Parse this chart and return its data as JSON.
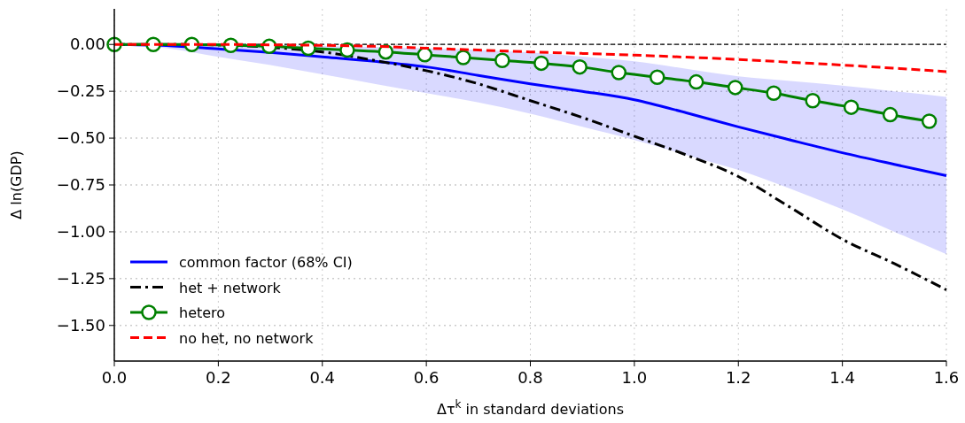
{
  "chart_data": {
    "type": "line",
    "xlabel": "Δτ$^{k}$ in standard deviations",
    "ylabel": "Δ ln(GDP)",
    "xlim": [
      0,
      1.6
    ],
    "ylim": [
      -1.69,
      0.19
    ],
    "xticks": [
      {
        "value": 0,
        "label": "0.0"
      },
      0.2,
      0.4,
      0.6,
      0.8,
      {
        "value": 1,
        "label": "1.0"
      },
      1.2,
      1.4,
      1.6
    ],
    "yticks": [
      {
        "value": 0,
        "label": "0.00"
      },
      {
        "value": -0.25,
        "label": "−0.25"
      },
      {
        "value": -0.5,
        "label": "−0.50"
      },
      {
        "value": -0.75,
        "label": "−0.75"
      },
      {
        "value": -1,
        "label": "−1.00"
      },
      {
        "value": -1.25,
        "label": "−1.25"
      },
      {
        "value": -1.5,
        "label": "−1.50"
      }
    ],
    "grid": true,
    "legend": "bottom left",
    "ref_lines": [
      {
        "axis": "y",
        "value": 0,
        "label": null,
        "color": "#000000",
        "line_style": "dashed"
      }
    ],
    "series": [
      {
        "name": "common factor (68% CI)",
        "color": "#0000ff",
        "line_style": "solid",
        "marker": "none",
        "x": [
          0,
          0.1,
          0.2,
          0.3,
          0.4,
          0.5,
          0.6,
          0.7,
          0.8,
          0.9,
          1.0,
          1.1,
          1.2,
          1.3,
          1.4,
          1.5,
          1.6
        ],
        "values": [
          0,
          -0.006,
          -0.024,
          -0.043,
          -0.066,
          -0.09,
          -0.12,
          -0.165,
          -0.21,
          -0.25,
          -0.295,
          -0.365,
          -0.44,
          -0.51,
          -0.578,
          -0.64,
          -0.7
        ],
        "lower": [
          0,
          -0.02,
          -0.066,
          -0.11,
          -0.16,
          -0.21,
          -0.26,
          -0.31,
          -0.37,
          -0.44,
          -0.51,
          -0.59,
          -0.67,
          -0.77,
          -0.88,
          -1.0,
          -1.12
        ],
        "upper": [
          0,
          0,
          0,
          -0.003,
          -0.008,
          -0.013,
          -0.02,
          -0.03,
          -0.043,
          -0.065,
          -0.09,
          -0.13,
          -0.17,
          -0.195,
          -0.22,
          -0.25,
          -0.28
        ]
      },
      {
        "name": "het + network",
        "color": "#000000",
        "line_style": "dashdot",
        "marker": "none",
        "x": [
          0,
          0.1,
          0.2,
          0.3,
          0.4,
          0.5,
          0.6,
          0.7,
          0.8,
          0.9,
          1.0,
          1.1,
          1.2,
          1.3,
          1.4,
          1.5,
          1.6
        ],
        "values": [
          0,
          0,
          -0.003,
          -0.015,
          -0.04,
          -0.085,
          -0.14,
          -0.21,
          -0.3,
          -0.39,
          -0.49,
          -0.59,
          -0.705,
          -0.87,
          -1.04,
          -1.17,
          -1.31
        ]
      },
      {
        "name": "hetero",
        "color": "#008000",
        "line_style": "solid",
        "marker": "circle",
        "x": [
          0,
          0.075,
          0.149,
          0.224,
          0.298,
          0.373,
          0.448,
          0.522,
          0.597,
          0.671,
          0.746,
          0.821,
          0.895,
          0.97,
          1.044,
          1.119,
          1.194,
          1.268,
          1.343,
          1.417,
          1.492,
          1.567
        ],
        "values": [
          0,
          0,
          0,
          -0.005,
          -0.01,
          -0.02,
          -0.03,
          -0.04,
          -0.055,
          -0.07,
          -0.085,
          -0.1,
          -0.12,
          -0.15,
          -0.175,
          -0.2,
          -0.23,
          -0.26,
          -0.3,
          -0.335,
          -0.375,
          -0.41
        ]
      },
      {
        "name": "no het, no network",
        "color": "#ff0000",
        "line_style": "dashed",
        "marker": "none",
        "x": [
          0,
          0.1,
          0.2,
          0.3,
          0.4,
          0.5,
          0.6,
          0.7,
          0.8,
          0.9,
          1.0,
          1.1,
          1.2,
          1.3,
          1.4,
          1.5,
          1.6
        ],
        "values": [
          0,
          0,
          0,
          -0.002,
          -0.005,
          -0.01,
          -0.02,
          -0.03,
          -0.04,
          -0.048,
          -0.057,
          -0.068,
          -0.08,
          -0.095,
          -0.11,
          -0.127,
          -0.145
        ]
      }
    ]
  }
}
